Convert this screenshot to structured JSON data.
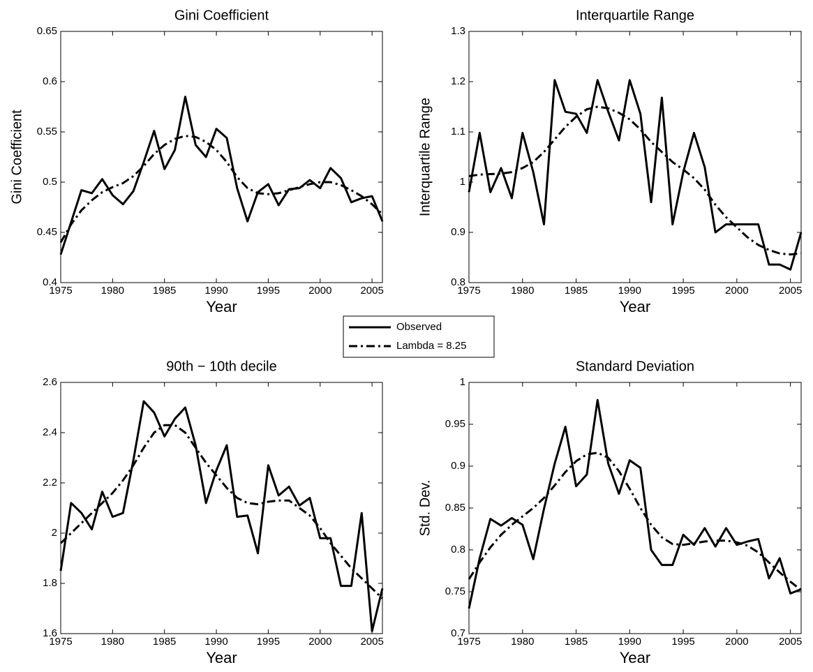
{
  "legend": [
    {
      "name": "Observed",
      "color": "#000000",
      "dash": "solid"
    },
    {
      "name": "Lambda = 8.25",
      "color": "#000000",
      "dash": "dashdot"
    }
  ],
  "chart_data": [
    {
      "type": "line",
      "title": "Gini Coefficient",
      "xlabel": "Year",
      "ylabel": "Gini Coefficient",
      "x": [
        1975,
        1976,
        1977,
        1978,
        1979,
        1980,
        1981,
        1982,
        1983,
        1984,
        1985,
        1986,
        1987,
        1988,
        1989,
        1990,
        1991,
        1992,
        1993,
        1994,
        1995,
        1996,
        1997,
        1998,
        1999,
        2000,
        2001,
        2002,
        2003,
        2004,
        2005,
        2006
      ],
      "series": [
        {
          "values": [
            0.428,
            0.46,
            0.492,
            0.489,
            0.503,
            0.487,
            0.478,
            0.491,
            0.52,
            0.551,
            0.513,
            0.532,
            0.585,
            0.537,
            0.525,
            0.553,
            0.544,
            0.494,
            0.461,
            0.49,
            0.498,
            0.477,
            0.493,
            0.494,
            0.502,
            0.494,
            0.514,
            0.504,
            0.48,
            0.484,
            0.486,
            0.461
          ]
        },
        {
          "values": [
            0.44,
            0.458,
            0.472,
            0.482,
            0.49,
            0.495,
            0.499,
            0.506,
            0.516,
            0.528,
            0.537,
            0.543,
            0.546,
            0.545,
            0.54,
            0.532,
            0.52,
            0.505,
            0.494,
            0.489,
            0.488,
            0.489,
            0.492,
            0.495,
            0.498,
            0.5,
            0.5,
            0.497,
            0.492,
            0.486,
            0.478,
            0.468
          ]
        }
      ],
      "xlim": [
        1975,
        2006
      ],
      "xticks": [
        1975,
        1980,
        1985,
        1990,
        1995,
        2000,
        2005
      ],
      "ylim": [
        0.4,
        0.65
      ],
      "yticks": [
        0.4,
        0.45,
        0.5,
        0.55,
        0.6,
        0.65
      ]
    },
    {
      "type": "line",
      "title": "Interquartile Range",
      "xlabel": "Year",
      "ylabel": "Interquartile Range",
      "x": [
        1975,
        1976,
        1977,
        1978,
        1979,
        1980,
        1981,
        1982,
        1983,
        1984,
        1985,
        1986,
        1987,
        1988,
        1989,
        1990,
        1991,
        1992,
        1993,
        1994,
        1995,
        1996,
        1997,
        1998,
        1999,
        2000,
        2001,
        2002,
        2003,
        2004,
        2005,
        2006
      ],
      "series": [
        {
          "values": [
            0.98,
            1.098,
            0.98,
            1.028,
            0.968,
            1.098,
            1.02,
            0.916,
            1.203,
            1.14,
            1.136,
            1.098,
            1.203,
            1.14,
            1.083,
            1.203,
            1.136,
            0.96,
            1.168,
            0.916,
            1.02,
            1.098,
            1.03,
            0.9,
            0.916,
            0.916,
            0.916,
            0.916,
            0.836,
            0.836,
            0.826,
            0.9
          ]
        },
        {
          "values": [
            1.012,
            1.015,
            1.016,
            1.017,
            1.02,
            1.028,
            1.04,
            1.06,
            1.085,
            1.11,
            1.13,
            1.145,
            1.15,
            1.147,
            1.138,
            1.125,
            1.105,
            1.08,
            1.06,
            1.04,
            1.025,
            1.008,
            0.985,
            0.955,
            0.93,
            0.91,
            0.89,
            0.875,
            0.865,
            0.858,
            0.856,
            0.858
          ]
        }
      ],
      "xlim": [
        1975,
        2006
      ],
      "xticks": [
        1975,
        1980,
        1985,
        1990,
        1995,
        2000,
        2005
      ],
      "ylim": [
        0.8,
        1.3
      ],
      "yticks": [
        0.8,
        0.9,
        1,
        1.1,
        1.2,
        1.3
      ]
    },
    {
      "type": "line",
      "title": "90th − 10th decile",
      "xlabel": "Year",
      "x": [
        1975,
        1976,
        1977,
        1978,
        1979,
        1980,
        1981,
        1982,
        1983,
        1984,
        1985,
        1986,
        1987,
        1988,
        1989,
        1990,
        1991,
        1992,
        1993,
        1994,
        1995,
        1996,
        1997,
        1998,
        1999,
        2000,
        2001,
        2002,
        2003,
        2004,
        2005,
        2006
      ],
      "series": [
        {
          "values": [
            1.85,
            2.12,
            2.08,
            2.015,
            2.165,
            2.065,
            2.08,
            2.29,
            2.525,
            2.48,
            2.385,
            2.455,
            2.5,
            2.35,
            2.12,
            2.25,
            2.35,
            2.065,
            2.07,
            1.92,
            2.27,
            2.15,
            2.185,
            2.11,
            2.14,
            1.98,
            1.98,
            1.79,
            1.79,
            2.08,
            1.61,
            1.78
          ]
        },
        {
          "values": [
            1.96,
            2.0,
            2.04,
            2.08,
            2.12,
            2.16,
            2.21,
            2.27,
            2.34,
            2.4,
            2.43,
            2.43,
            2.4,
            2.34,
            2.28,
            2.23,
            2.18,
            2.14,
            2.12,
            2.115,
            2.125,
            2.13,
            2.13,
            2.1,
            2.07,
            2.02,
            1.96,
            1.91,
            1.86,
            1.82,
            1.78,
            1.74
          ]
        }
      ],
      "xlim": [
        1975,
        2006
      ],
      "xticks": [
        1975,
        1980,
        1985,
        1990,
        1995,
        2000,
        2005
      ],
      "ylim": [
        1.6,
        2.6
      ],
      "yticks": [
        1.6,
        1.8,
        2,
        2.2,
        2.4,
        2.6
      ]
    },
    {
      "type": "line",
      "title": "Standard Deviation",
      "xlabel": "Year",
      "ylabel": "Std. Dev.",
      "x": [
        1975,
        1976,
        1977,
        1978,
        1979,
        1980,
        1981,
        1982,
        1983,
        1984,
        1985,
        1986,
        1987,
        1988,
        1989,
        1990,
        1991,
        1992,
        1993,
        1994,
        1995,
        1996,
        1997,
        1998,
        1999,
        2000,
        2001,
        2002,
        2003,
        2004,
        2005,
        2006
      ],
      "series": [
        {
          "values": [
            0.73,
            0.79,
            0.837,
            0.829,
            0.838,
            0.83,
            0.789,
            0.849,
            0.903,
            0.947,
            0.876,
            0.89,
            0.979,
            0.903,
            0.867,
            0.907,
            0.898,
            0.8,
            0.782,
            0.782,
            0.818,
            0.806,
            0.826,
            0.804,
            0.826,
            0.806,
            0.81,
            0.813,
            0.766,
            0.79,
            0.748,
            0.753
          ]
        },
        {
          "values": [
            0.765,
            0.785,
            0.803,
            0.818,
            0.83,
            0.84,
            0.85,
            0.862,
            0.877,
            0.893,
            0.906,
            0.914,
            0.916,
            0.91,
            0.894,
            0.873,
            0.85,
            0.83,
            0.815,
            0.807,
            0.806,
            0.808,
            0.81,
            0.811,
            0.811,
            0.809,
            0.805,
            0.797,
            0.785,
            0.773,
            0.762,
            0.752
          ]
        }
      ],
      "xlim": [
        1975,
        2006
      ],
      "xticks": [
        1975,
        1980,
        1985,
        1990,
        1995,
        2000,
        2005
      ],
      "ylim": [
        0.7,
        1
      ],
      "yticks": [
        0.7,
        0.75,
        0.8,
        0.85,
        0.9,
        0.95,
        1
      ]
    }
  ]
}
